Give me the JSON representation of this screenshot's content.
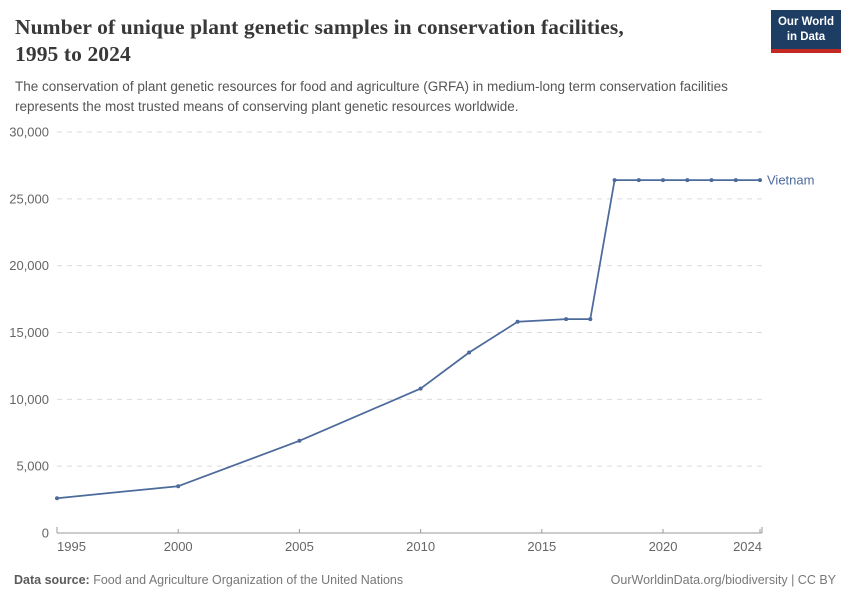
{
  "header": {
    "title_line1": "Number of unique plant genetic samples in conservation facilities,",
    "title_line2": "1995 to 2024",
    "subtitle_line1": "The conservation of plant genetic resources for food and agriculture (GRFA) in medium-long term conservation facilities",
    "subtitle_line2": "represents the most trusted means of conserving plant genetic resources worldwide."
  },
  "branding": {
    "logo_line1": "Our World",
    "logo_line2": "in Data",
    "navy": "#1D3D63",
    "red": "#C32923"
  },
  "chart_data": {
    "type": "line",
    "title": "Number of unique plant genetic samples in conservation facilities, 1995 to 2024",
    "xlabel": "",
    "ylabel": "",
    "xlim": [
      1995,
      2024
    ],
    "ylim": [
      0,
      30000
    ],
    "xticks": [
      1995,
      2000,
      2005,
      2010,
      2015,
      2020,
      2024
    ],
    "yticks": [
      0,
      5000,
      10000,
      15000,
      20000,
      25000,
      30000
    ],
    "grid": "horizontal-dashed",
    "legend_position": "end-of-line-label",
    "series": [
      {
        "name": "Vietnam",
        "color": "#4C6A9C",
        "points": [
          [
            1995,
            2600
          ],
          [
            2000,
            3500
          ],
          [
            2005,
            6900
          ],
          [
            2010,
            10800
          ],
          [
            2012,
            13500
          ],
          [
            2014,
            15800
          ],
          [
            2016,
            16000
          ],
          [
            2017,
            16000
          ],
          [
            2018,
            26400
          ],
          [
            2019,
            26400
          ],
          [
            2020,
            26400
          ],
          [
            2021,
            26400
          ],
          [
            2022,
            26400
          ],
          [
            2023,
            26400
          ],
          [
            2024,
            26400
          ]
        ]
      }
    ],
    "colors": {
      "grid": "#DCDCDC",
      "axis": "#999999",
      "tick_text": "#666666"
    }
  },
  "footer": {
    "source_label": "Data source:",
    "source_value": "Food and Agriculture Organization of the United Nations",
    "attribution": "OurWorldinData.org/biodiversity | CC BY"
  }
}
